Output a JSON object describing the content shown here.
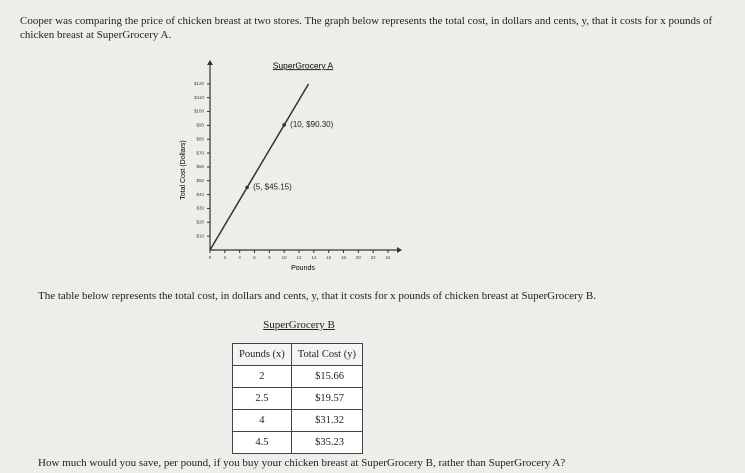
{
  "question": "Cooper was comparing the price of chicken breast at two stores. The graph below represents the total cost, in dollars and cents, y, that it costs for x pounds of chicken breast at SuperGrocery A.",
  "graph": {
    "type": "line",
    "title": "SuperGrocery A",
    "x_label": "Pounds",
    "y_label": "Total Cost (Dollars)",
    "x": [
      0,
      5,
      10,
      13.29
    ],
    "values": [
      0,
      45.15,
      90.3,
      120
    ],
    "color": "#333333",
    "annotations": [
      {
        "x": 5,
        "y": 45.15,
        "text": "(5, $45.15)"
      },
      {
        "x": 10,
        "y": 90.3,
        "text": "(10, $90.30)"
      }
    ],
    "xlim": [
      0,
      24
    ],
    "ylim": [
      0,
      130
    ],
    "xticks": [
      0,
      2,
      4,
      6,
      8,
      10,
      12,
      14,
      16,
      18,
      20,
      22,
      24
    ],
    "yticks": [
      {
        "value": 10,
        "label": "$10"
      },
      {
        "value": 20,
        "label": "$20"
      },
      {
        "value": 30,
        "label": "$30"
      },
      {
        "value": 40,
        "label": "$40"
      },
      {
        "value": 50,
        "label": "$50"
      },
      {
        "value": 60,
        "label": "$60"
      },
      {
        "value": 70,
        "label": "$70"
      },
      {
        "value": 80,
        "label": "$80"
      },
      {
        "value": 90,
        "label": "$90"
      },
      {
        "value": 100,
        "label": "$100"
      },
      {
        "value": 110,
        "label": "$110"
      },
      {
        "value": 120,
        "label": "$120"
      }
    ]
  },
  "table_intro": "The table below represents the total cost, in dollars and cents, y, that it costs for x pounds of chicken breast at SuperGrocery B.",
  "table": {
    "title": "SuperGrocery B",
    "headers": [
      "Pounds (x)",
      "Total Cost (y)"
    ],
    "rows": [
      [
        2,
        "$15.66"
      ],
      [
        2.5,
        "$19.57"
      ],
      [
        4,
        "$31.32"
      ],
      [
        4.5,
        "$35.23"
      ]
    ]
  },
  "final_question": "How much would you save, per pound, if you buy your chicken breast at SuperGrocery B, rather than SuperGrocery A?"
}
